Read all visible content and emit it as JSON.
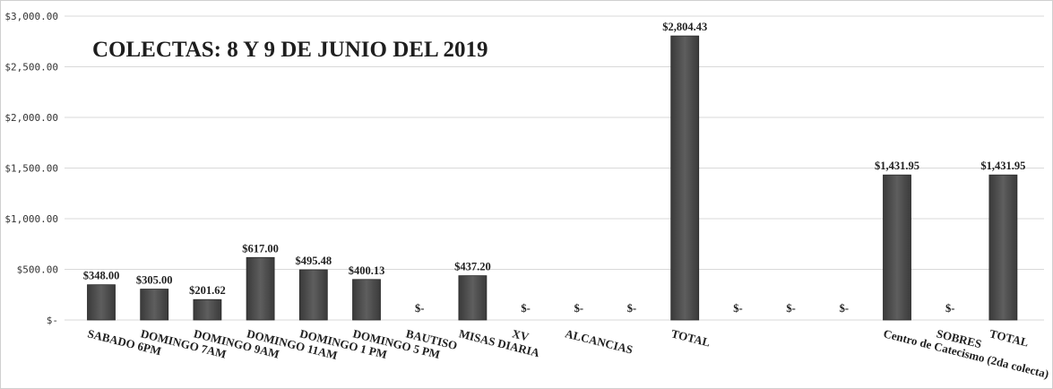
{
  "chart_data": {
    "type": "bar",
    "title": "COLECTAS:  8 Y 9 DE JUNIO DEL 2019",
    "ylim": [
      0,
      3000
    ],
    "yticks": [
      {
        "value": 0,
        "label": "$-"
      },
      {
        "value": 500,
        "label": "$500.00"
      },
      {
        "value": 1000,
        "label": "$1,000.00"
      },
      {
        "value": 1500,
        "label": "$1,500.00"
      },
      {
        "value": 2000,
        "label": "$2,000.00"
      },
      {
        "value": 2500,
        "label": "$2,500.00"
      },
      {
        "value": 3000,
        "label": "$3,000.00"
      }
    ],
    "categories": [
      "SABADO 6PM",
      "DOMINGO 7AM",
      "DOMINGO 9AM",
      "DOMINGO 11AM",
      "DOMINGO 1 PM",
      "DOMINGO 5 PM",
      "BAUTISO",
      "MISAS DIARIA",
      "XV",
      "ALCANCIAS",
      "",
      "TOTAL",
      "",
      "",
      "",
      "Centro de Catecismo (2da colecta)",
      "SOBRES",
      "TOTAL"
    ],
    "values": [
      348,
      305,
      201.62,
      617,
      495.48,
      400.13,
      0,
      437.2,
      0,
      0,
      0,
      2804.43,
      0,
      0,
      0,
      1431.95,
      0,
      1431.95
    ],
    "data_labels": [
      "$348.00",
      "$305.00",
      "$201.62",
      "$617.00",
      "$495.48",
      "$400.13",
      "$-",
      "$437.20",
      "$-",
      "$-",
      "$-",
      "$2,804.43",
      "$-",
      "$-",
      "$-",
      "$1,431.95",
      "$-",
      "$1,431.95"
    ],
    "grid": true,
    "legend": "none",
    "bar_color": "#4a4a4a"
  }
}
